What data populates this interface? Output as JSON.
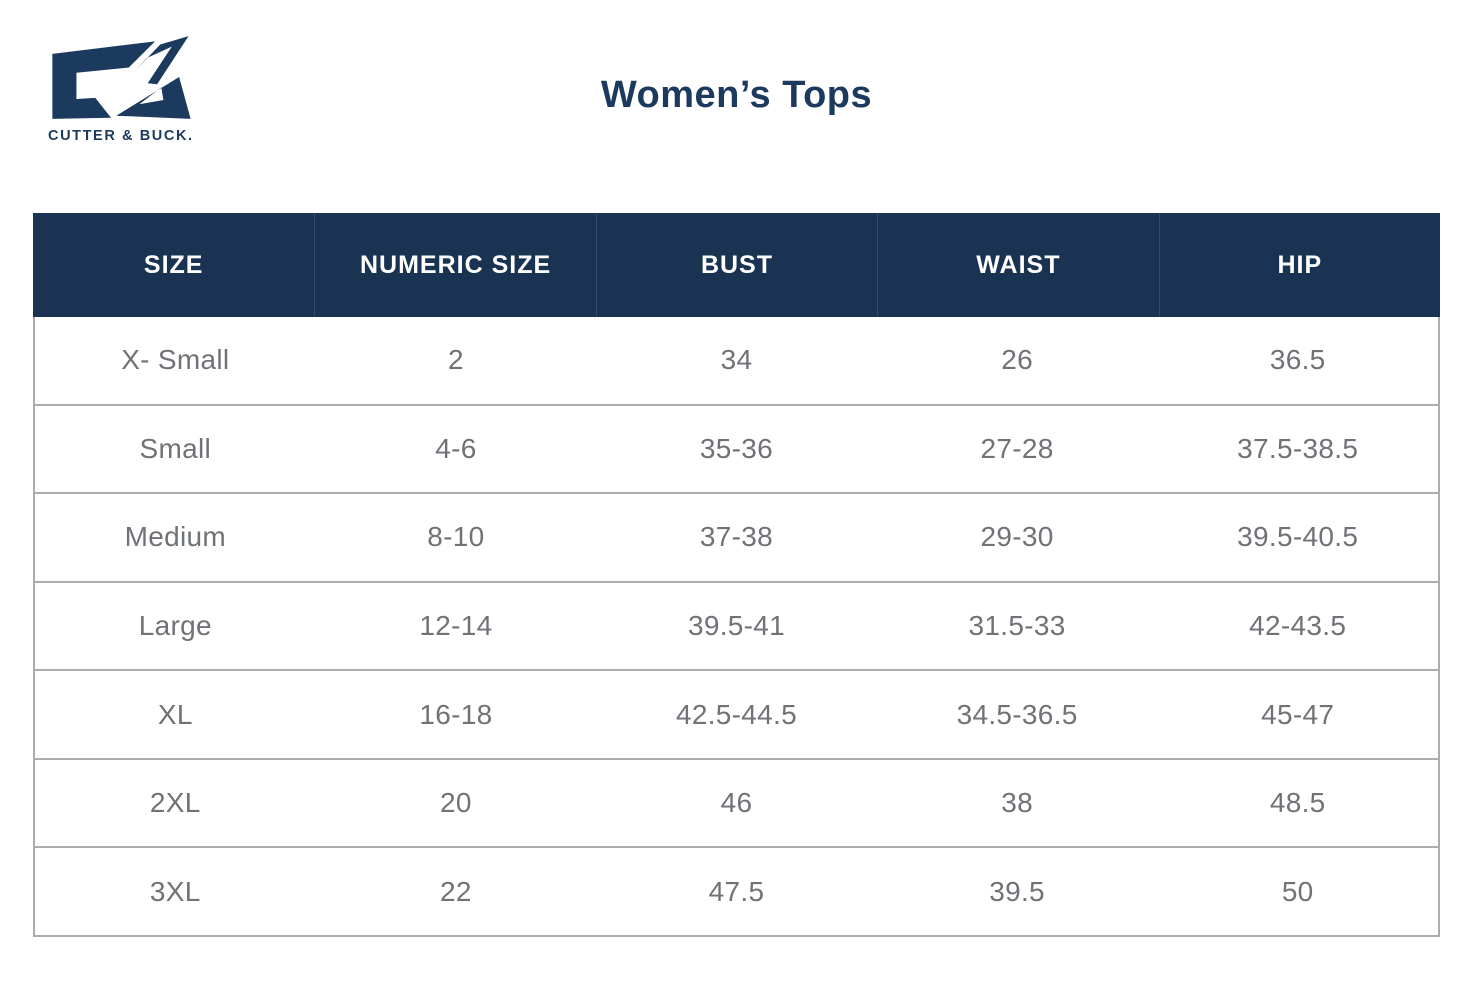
{
  "logo": {
    "brand": "CUTTER & BUCK.",
    "mark": "cb-monogram"
  },
  "title": "Women’s Tops",
  "colors": {
    "navy": "#1b3a5e",
    "header_bg": "#1a3353",
    "header_text": "#ffffff",
    "body_text": "#6f7276",
    "divider": "#aaacae"
  },
  "table": {
    "columns": [
      "SIZE",
      "NUMERIC SIZE",
      "BUST",
      "WAIST",
      "HIP"
    ],
    "rows": [
      [
        "X- Small",
        "2",
        "34",
        "26",
        "36.5"
      ],
      [
        "Small",
        "4-6",
        "35-36",
        "27-28",
        "37.5-38.5"
      ],
      [
        "Medium",
        "8-10",
        "37-38",
        "29-30",
        "39.5-40.5"
      ],
      [
        "Large",
        "12-14",
        "39.5-41",
        "31.5-33",
        "42-43.5"
      ],
      [
        "XL",
        "16-18",
        "42.5-44.5",
        "34.5-36.5",
        "45-47"
      ],
      [
        "2XL",
        "20",
        "46",
        "38",
        "48.5"
      ],
      [
        "3XL",
        "22",
        "47.5",
        "39.5",
        "50"
      ]
    ]
  }
}
